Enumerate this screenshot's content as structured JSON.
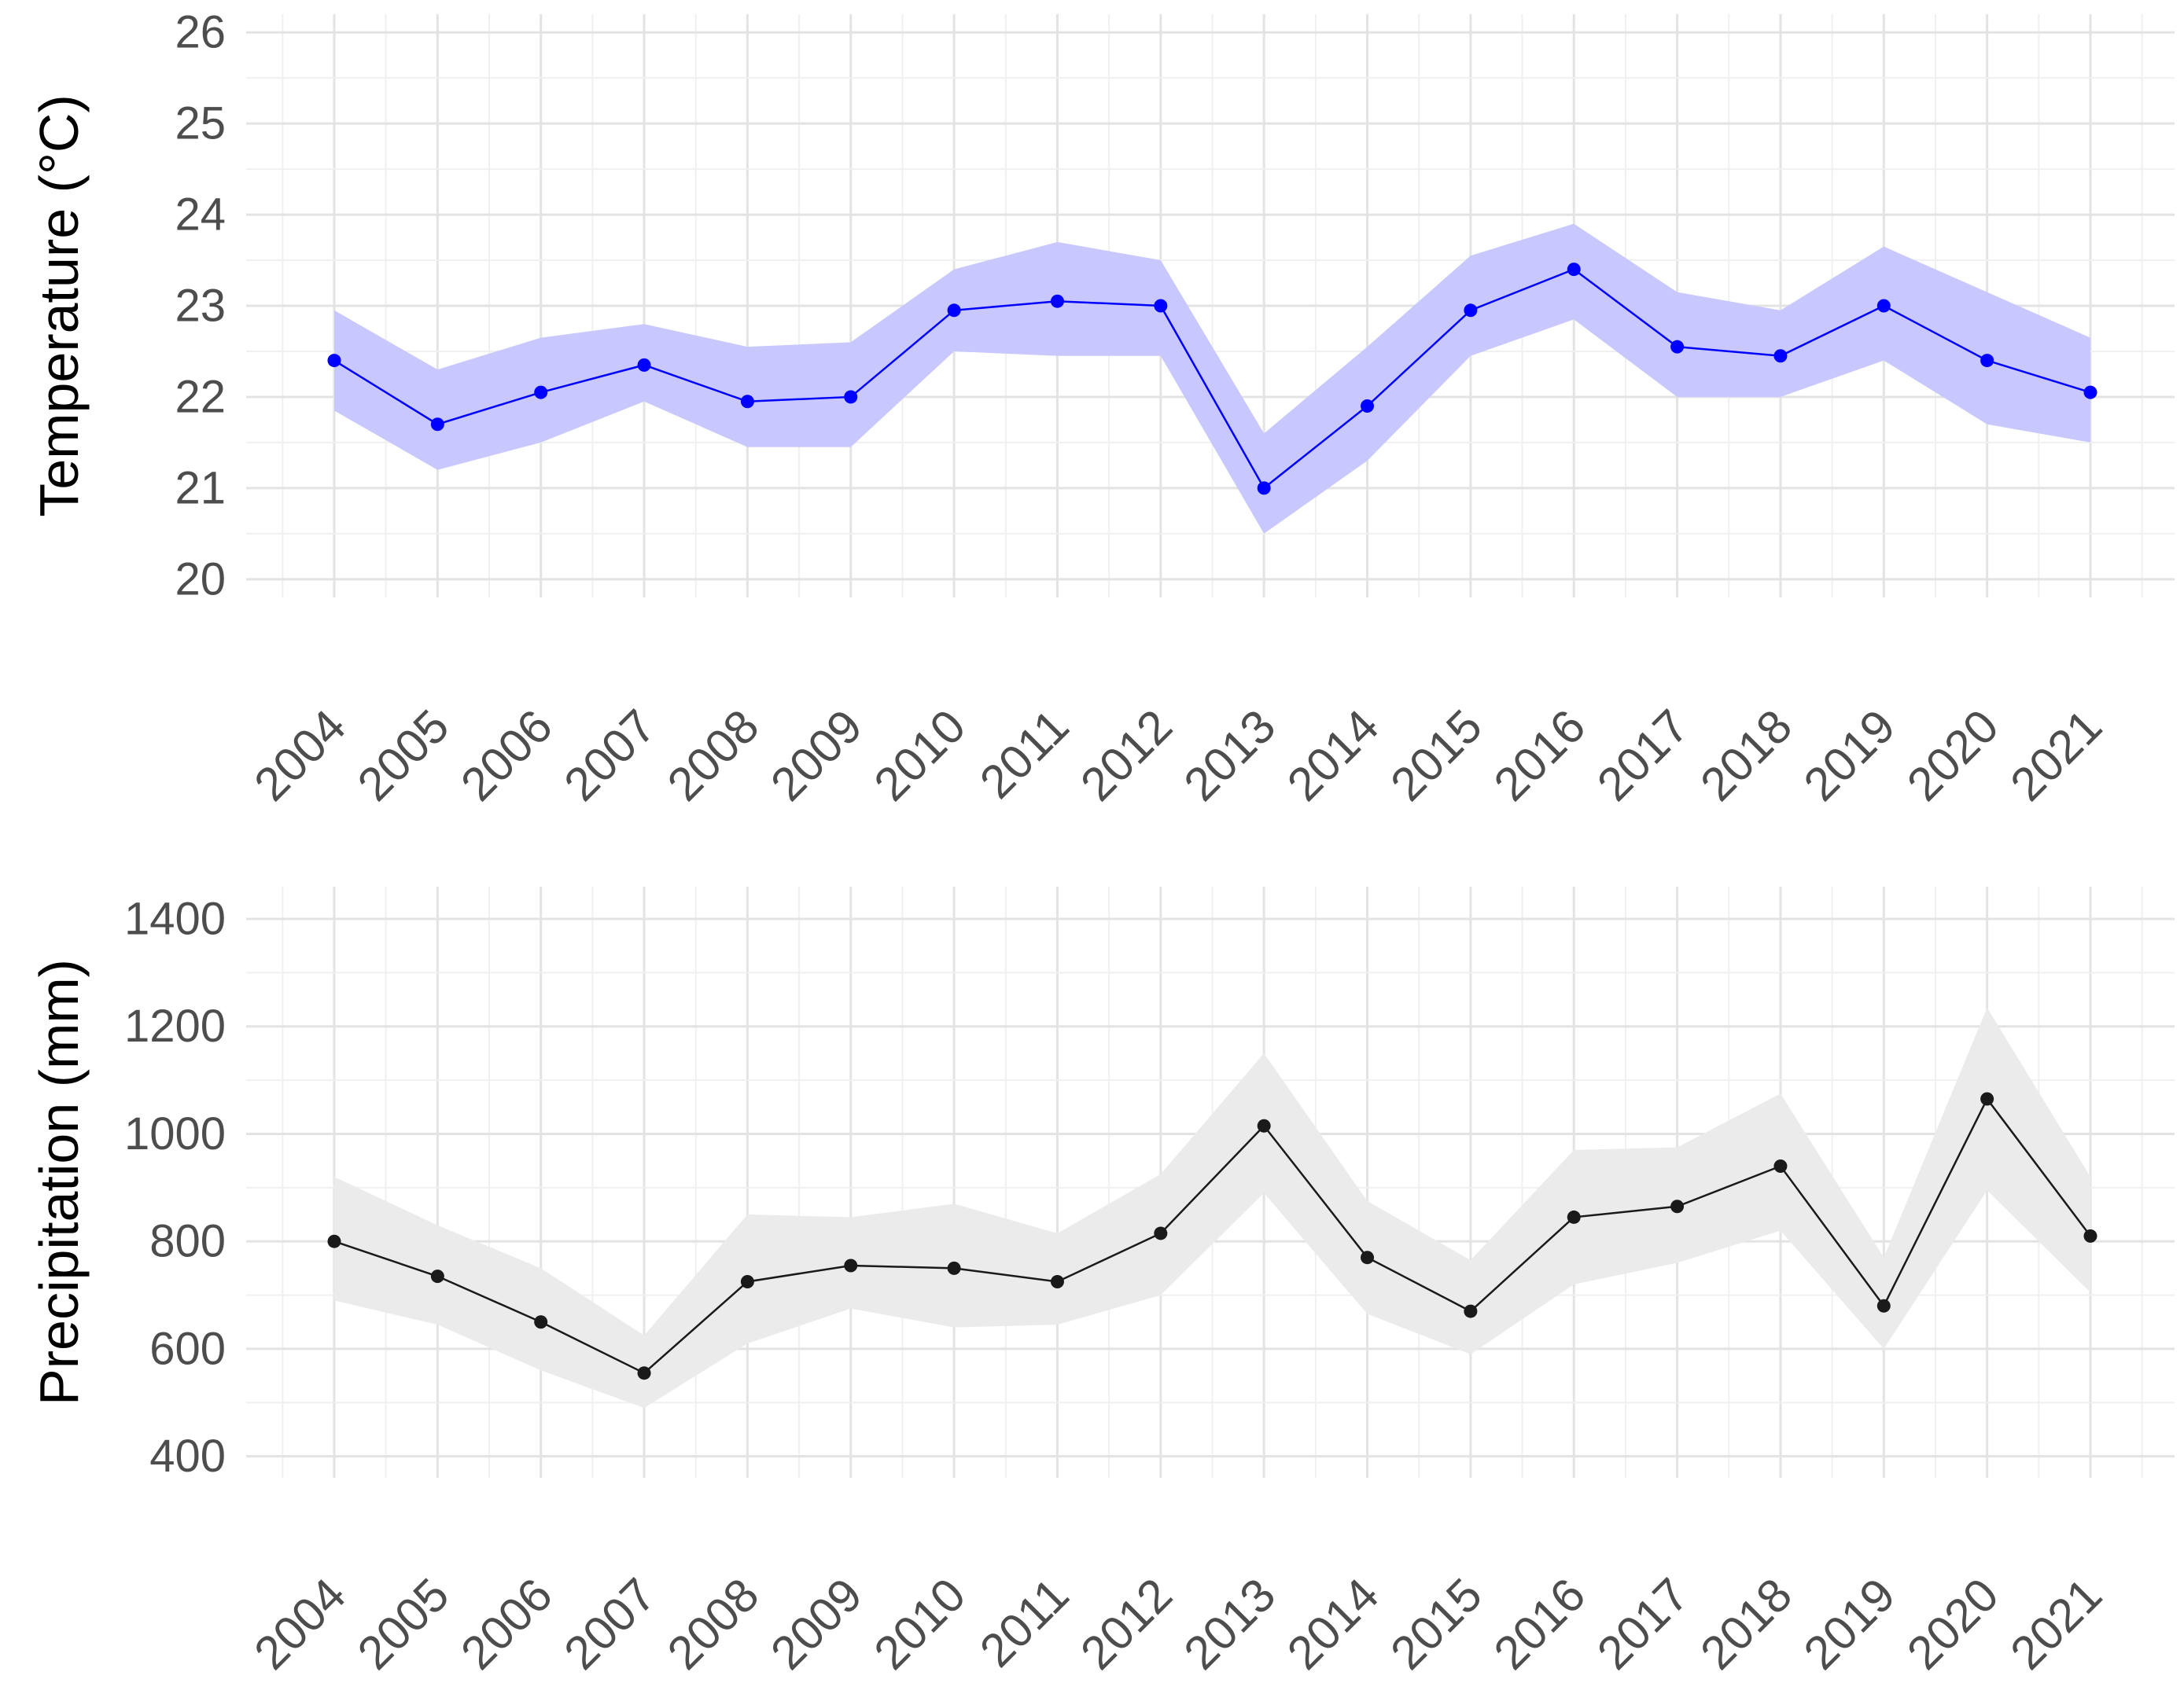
{
  "chart_data": [
    {
      "type": "line",
      "ylabel": "Temperature (°C)",
      "xlabel": "",
      "title": "",
      "x": [
        "2004",
        "2005",
        "2006",
        "2007",
        "2008",
        "2009",
        "2010",
        "2011",
        "2012",
        "2013",
        "2014",
        "2015",
        "2016",
        "2017",
        "2018",
        "2019",
        "2020",
        "2021"
      ],
      "series": [
        {
          "values": [
            22.4,
            21.7,
            22.05,
            22.35,
            21.95,
            22.0,
            22.95,
            23.05,
            23.0,
            21.0,
            21.9,
            22.95,
            23.4,
            22.55,
            22.45,
            23.0,
            22.4,
            22.05
          ],
          "band_low": [
            21.85,
            21.2,
            21.5,
            21.95,
            21.45,
            21.45,
            22.5,
            22.45,
            22.45,
            20.5,
            21.3,
            22.45,
            22.85,
            22.0,
            22.0,
            22.4,
            21.7,
            21.5
          ],
          "band_high": [
            22.95,
            22.3,
            22.65,
            22.8,
            22.55,
            22.6,
            23.4,
            23.7,
            23.5,
            21.6,
            22.55,
            23.55,
            23.9,
            23.15,
            22.95,
            23.65,
            23.15,
            22.65
          ],
          "line_color": "#0000ff",
          "band_color": "#c8c8ff"
        }
      ],
      "ylim": [
        19.8,
        26.2
      ],
      "yticks": [
        "20",
        "21",
        "22",
        "23",
        "24",
        "25",
        "26"
      ],
      "grid": true
    },
    {
      "type": "line",
      "ylabel": "Precipitation (mm)",
      "xlabel": "",
      "title": "",
      "x": [
        "2004",
        "2005",
        "2006",
        "2007",
        "2008",
        "2009",
        "2010",
        "2011",
        "2012",
        "2013",
        "2014",
        "2015",
        "2016",
        "2017",
        "2018",
        "2019",
        "2020",
        "2021"
      ],
      "series": [
        {
          "values": [
            800,
            735,
            650,
            555,
            725,
            755,
            750,
            725,
            815,
            1015,
            770,
            670,
            845,
            865,
            940,
            680,
            1065,
            810
          ],
          "band_low": [
            690,
            645,
            560,
            490,
            610,
            675,
            640,
            645,
            700,
            890,
            665,
            590,
            720,
            760,
            820,
            600,
            895,
            705
          ],
          "band_high": [
            920,
            830,
            750,
            625,
            850,
            845,
            870,
            815,
            925,
            1150,
            875,
            765,
            970,
            975,
            1075,
            770,
            1235,
            920
          ],
          "line_color": "#1a1a1a",
          "band_color": "#ebebeb"
        }
      ],
      "ylim": [
        360,
        1460
      ],
      "yticks": [
        "400",
        "600",
        "800",
        "1000",
        "1200",
        "1400"
      ],
      "grid": true
    }
  ]
}
